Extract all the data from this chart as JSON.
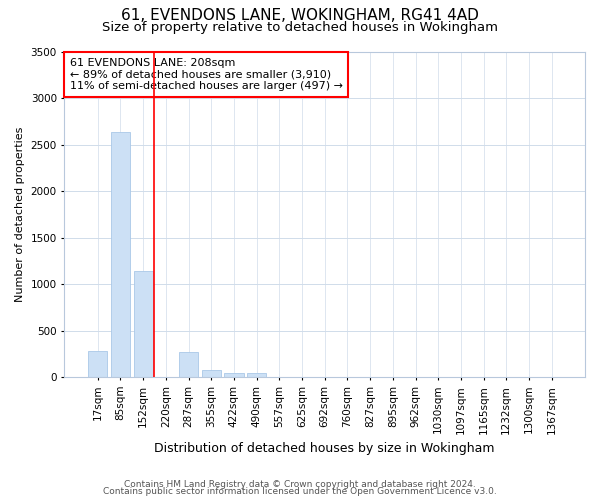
{
  "title": "61, EVENDONS LANE, WOKINGHAM, RG41 4AD",
  "subtitle": "Size of property relative to detached houses in Wokingham",
  "xlabel": "Distribution of detached houses by size in Wokingham",
  "ylabel": "Number of detached properties",
  "footnote1": "Contains HM Land Registry data © Crown copyright and database right 2024.",
  "footnote2": "Contains public sector information licensed under the Open Government Licence v3.0.",
  "categories": [
    "17sqm",
    "85sqm",
    "152sqm",
    "220sqm",
    "287sqm",
    "355sqm",
    "422sqm",
    "490sqm",
    "557sqm",
    "625sqm",
    "692sqm",
    "760sqm",
    "827sqm",
    "895sqm",
    "962sqm",
    "1030sqm",
    "1097sqm",
    "1165sqm",
    "1232sqm",
    "1300sqm",
    "1367sqm"
  ],
  "values": [
    280,
    2640,
    1140,
    0,
    270,
    80,
    50,
    50,
    0,
    0,
    0,
    0,
    0,
    0,
    0,
    0,
    0,
    0,
    0,
    0,
    0
  ],
  "bar_color": "#cce0f5",
  "bar_edge_color": "#aac8e8",
  "red_line_x": 3.0,
  "annotation_text": "61 EVENDONS LANE: 208sqm\n← 89% of detached houses are smaller (3,910)\n11% of semi-detached houses are larger (497) →",
  "annotation_box_color": "white",
  "annotation_box_edge": "red",
  "ylim": [
    0,
    3500
  ],
  "yticks": [
    0,
    500,
    1000,
    1500,
    2000,
    2500,
    3000,
    3500
  ],
  "title_fontsize": 11,
  "subtitle_fontsize": 9.5,
  "ylabel_fontsize": 8,
  "xlabel_fontsize": 9,
  "tick_fontsize": 7.5,
  "annotation_fontsize": 8,
  "footnote_fontsize": 6.5,
  "grid_color": "#d0dcea",
  "background_color": "#ffffff"
}
